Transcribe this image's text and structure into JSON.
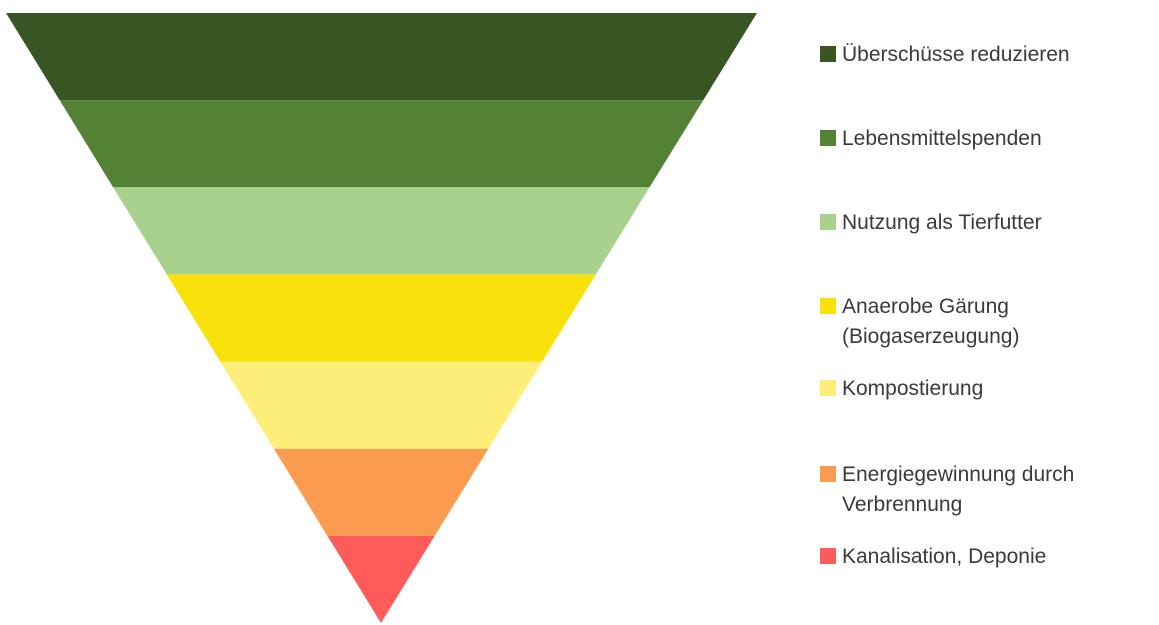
{
  "diagram": {
    "type": "inverted-pyramid",
    "levels": [
      {
        "label": "Überschüsse reduzieren",
        "color": "#375623"
      },
      {
        "label": "Lebensmittelspenden",
        "color": "#548235"
      },
      {
        "label": "Nutzung als Tierfutter",
        "color": "#a9d18e"
      },
      {
        "label": "Anaerobe Gärung\n(Biogaserzeugung)",
        "color": "#f9e10c"
      },
      {
        "label": "Kompostierung",
        "color": "#fdee7a"
      },
      {
        "label": "Energiegewinnung durch\nVerbrennung",
        "color": "#fb9b4f"
      },
      {
        "label": "Kanalisation, Deponie",
        "color": "#ff5b5b"
      }
    ]
  }
}
